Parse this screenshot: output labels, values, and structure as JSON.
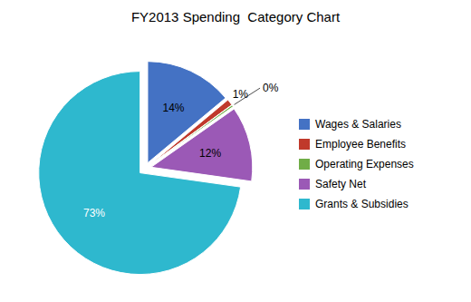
{
  "chart_data": {
    "type": "pie",
    "title": "FY2013 Spending  Category Chart",
    "categories": [
      "Wages & Salaries",
      "Employee Benefits",
      "Operating Expenses",
      "Safety Net",
      "Grants & Subsidies"
    ],
    "values": [
      14,
      1,
      0.3,
      12,
      73
    ],
    "value_labels": [
      "14%",
      "1%",
      "0%",
      "12%",
      "73%"
    ],
    "colors": [
      "#4472C4",
      "#C0392B",
      "#70AD47",
      "#9B59B6",
      "#2EB8CE"
    ],
    "data_labels": true,
    "legend": "right"
  }
}
